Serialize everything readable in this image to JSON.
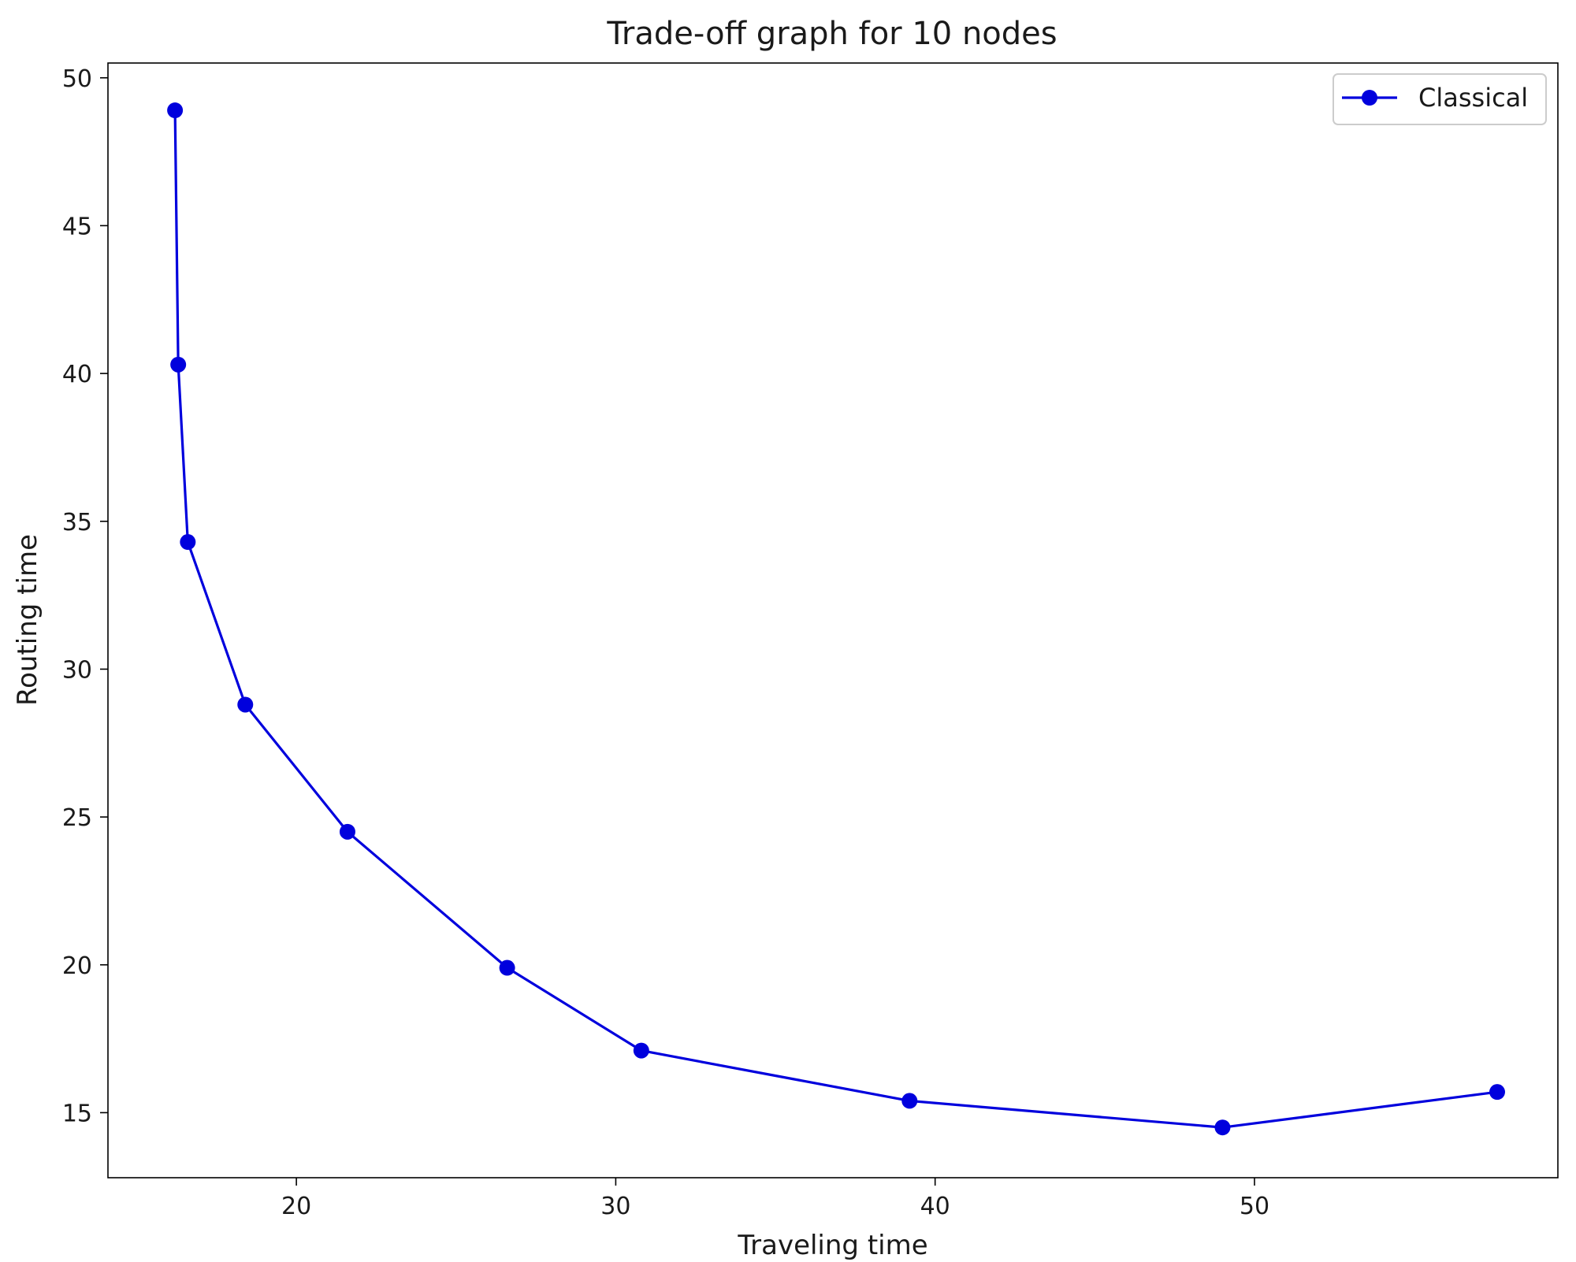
{
  "chart_data": {
    "type": "line",
    "title": "Trade-off graph for 10 nodes",
    "xlabel": "Traveling time",
    "ylabel": "Routing time",
    "xlim": [
      14.1,
      59.5
    ],
    "ylim": [
      12.8,
      50.5
    ],
    "xticks": [
      20,
      30,
      40,
      50
    ],
    "yticks": [
      15,
      20,
      25,
      30,
      35,
      40,
      45,
      50
    ],
    "grid": false,
    "legend_position": "top-right",
    "series": [
      {
        "name": "Classical",
        "color": "#0000dd",
        "marker": "circle",
        "x": [
          16.2,
          16.3,
          16.6,
          18.4,
          21.6,
          26.6,
          30.8,
          39.2,
          49.0,
          57.6
        ],
        "y": [
          48.9,
          40.3,
          34.3,
          28.8,
          24.5,
          19.9,
          17.1,
          15.4,
          14.5,
          15.7
        ]
      }
    ]
  }
}
